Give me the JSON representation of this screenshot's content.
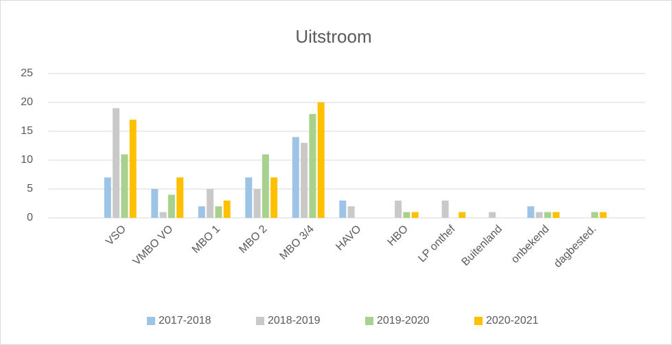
{
  "chart_data": {
    "type": "bar",
    "title": "Uitstroom",
    "categories": [
      "VSO",
      "VMBO VO",
      "MBO 1",
      "MBO 2",
      "MBO 3/4",
      "HAVO",
      "HBO",
      "LP onthef",
      "Buitenland",
      "onbekend",
      "dagbested."
    ],
    "series": [
      {
        "name": "2017-2018",
        "color": "#9dc3e6",
        "values": [
          7,
          5,
          2,
          7,
          14,
          3,
          0,
          0,
          0,
          2,
          0
        ]
      },
      {
        "name": "2018-2019",
        "color": "#c9c9c9",
        "values": [
          19,
          1,
          5,
          5,
          13,
          2,
          3,
          3,
          1,
          1,
          0
        ]
      },
      {
        "name": "2019-2020",
        "color": "#a9d18e",
        "values": [
          11,
          4,
          2,
          11,
          18,
          0,
          1,
          0,
          0,
          1,
          1
        ]
      },
      {
        "name": "2020-2021",
        "color": "#ffc000",
        "values": [
          17,
          7,
          3,
          7,
          20,
          0,
          1,
          1,
          0,
          1,
          1
        ]
      }
    ],
    "ylim": [
      0,
      25
    ],
    "yticks": [
      0,
      5,
      10,
      15,
      20,
      25
    ],
    "grid": true,
    "legend": "bottom"
  }
}
